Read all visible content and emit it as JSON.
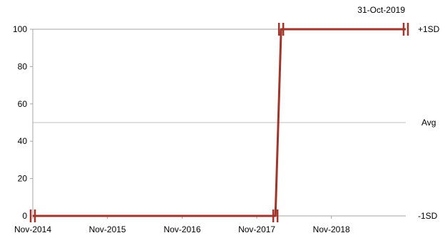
{
  "chart_data": {
    "type": "line",
    "date_label": "31-Oct-2019",
    "x_tick_labels": [
      "Nov-2014",
      "Nov-2015",
      "Nov-2016",
      "Nov-2017",
      "Nov-2018"
    ],
    "y_ticks": [
      0,
      20,
      40,
      60,
      80,
      100
    ],
    "ylim": [
      0,
      100
    ],
    "xlim": [
      "2014-11-01",
      "2019-10-31"
    ],
    "reference_lines": [
      {
        "label": "+1SD",
        "value": 100
      },
      {
        "label": "Avg",
        "value": 50
      },
      {
        "label": "-1SD",
        "value": 0
      }
    ],
    "series": [
      {
        "color": "#a0352b",
        "points": [
          {
            "x": "2014-11-01",
            "y": 0
          },
          {
            "x": "2018-01-31",
            "y": 0
          },
          {
            "x": "2018-02-28",
            "y": 100
          },
          {
            "x": "2019-10-31",
            "y": 100
          }
        ]
      }
    ],
    "break_markers": [
      {
        "x": "2014-11-01",
        "y": 0
      },
      {
        "x": "2018-01-31",
        "y": 0
      },
      {
        "x": "2018-02-28",
        "y": 100
      },
      {
        "x": "2019-10-31",
        "y": 100
      }
    ],
    "colors": {
      "series": "#a0352b",
      "axis": "#a6a6a6",
      "avg": "#bfbfbf"
    }
  }
}
